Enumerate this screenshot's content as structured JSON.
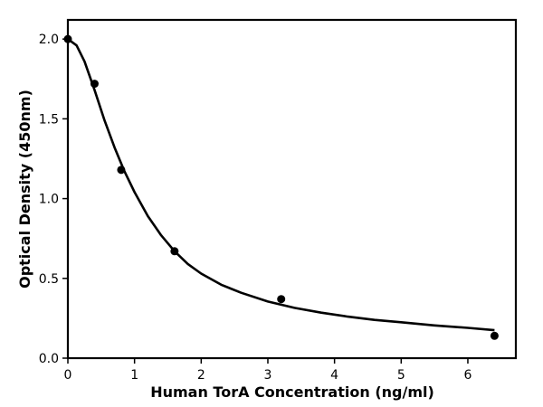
{
  "chart_data": {
    "type": "scatter",
    "title": "",
    "xlabel": "Human TorA Concentration (ng/ml)",
    "ylabel": "Optical Density (450nm)",
    "xlim": [
      0,
      6.72
    ],
    "ylim": [
      0,
      2.12
    ],
    "x_ticks": [
      0,
      1,
      2,
      3,
      4,
      5,
      6
    ],
    "y_ticks": [
      0.0,
      0.5,
      1.0,
      1.5,
      2.0
    ],
    "x_tick_labels": [
      "0",
      "1",
      "2",
      "3",
      "4",
      "5",
      "6"
    ],
    "y_tick_labels": [
      "0.0",
      "0.5",
      "1.0",
      "1.5",
      "2.0"
    ],
    "grid": false,
    "series": [
      {
        "kind": "points",
        "color": "#000000",
        "x": [
          0,
          0.4,
          0.8,
          1.6,
          3.2,
          6.4
        ],
        "y": [
          2.0,
          1.72,
          1.18,
          0.67,
          0.37,
          0.14
        ]
      },
      {
        "kind": "fitted-curve",
        "color": "#000000",
        "x": [
          0,
          0.13,
          0.25,
          0.4,
          0.55,
          0.7,
          0.85,
          1.0,
          1.2,
          1.4,
          1.6,
          1.8,
          2.0,
          2.3,
          2.6,
          3.0,
          3.4,
          3.8,
          4.2,
          4.6,
          5.0,
          5.5,
          6.0,
          6.4
        ],
        "y": [
          2.0,
          1.96,
          1.86,
          1.68,
          1.49,
          1.32,
          1.17,
          1.04,
          0.89,
          0.77,
          0.67,
          0.59,
          0.53,
          0.46,
          0.41,
          0.355,
          0.315,
          0.285,
          0.26,
          0.24,
          0.225,
          0.205,
          0.19,
          0.175
        ]
      }
    ]
  }
}
